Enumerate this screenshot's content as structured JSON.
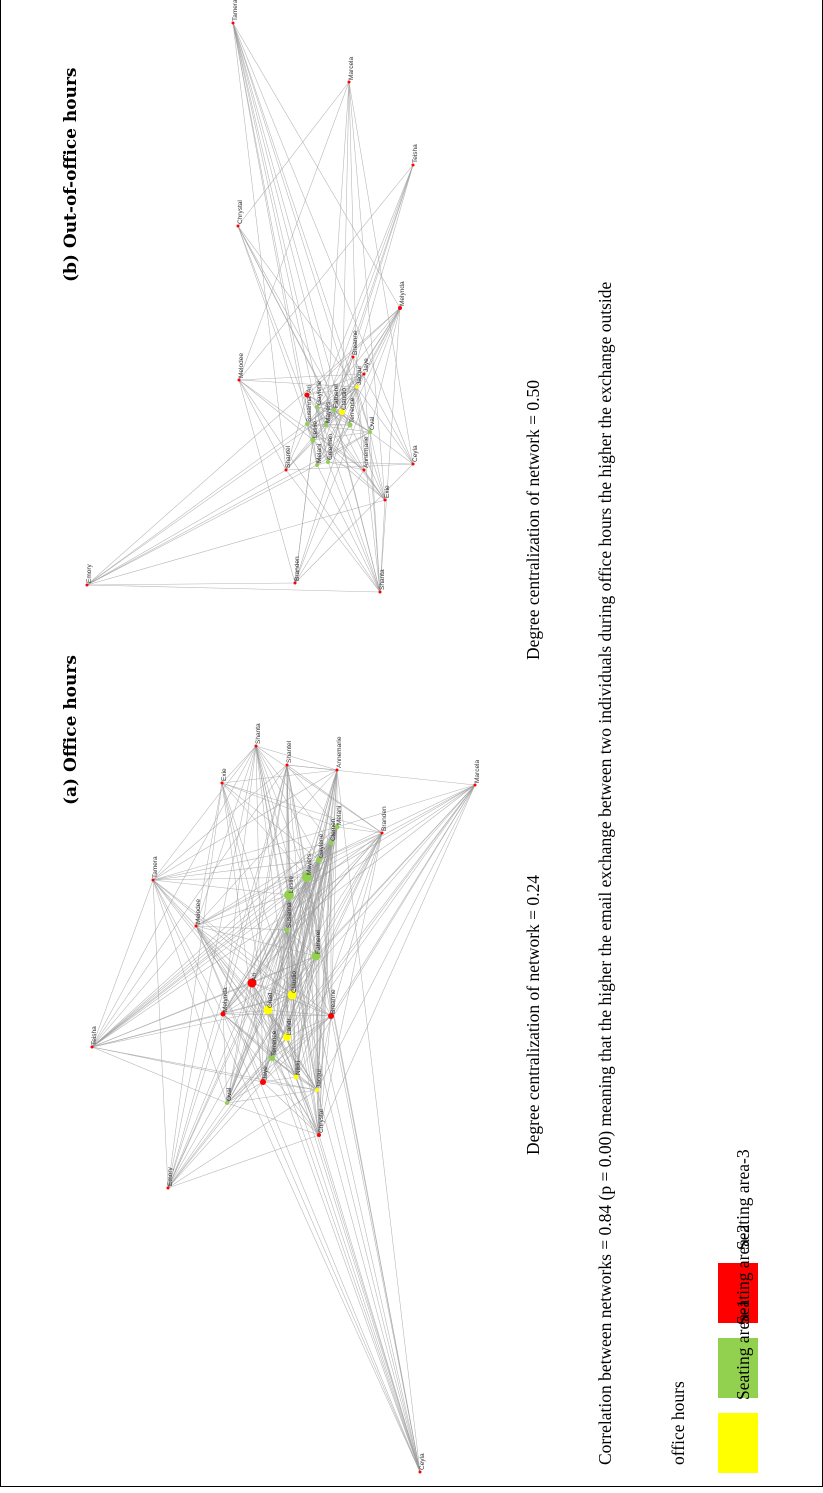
{
  "panels": {
    "a": {
      "title": "(a)  Office hours",
      "centralization": "Degree centralization of network = 0.24"
    },
    "b": {
      "title": "(b)  Out-of-office hours",
      "centralization": "Degree centralization of network = 0.50"
    }
  },
  "correlation": {
    "line1": "Correlation between networks = 0.84 (p = 0.00) meaning that the higher the email exchange between two individuals during office hours the higher the exchange outside",
    "line2": "office hours"
  },
  "legend": [
    {
      "label": "Seating area-1",
      "color": "#ffff00"
    },
    {
      "label": "Seating area-2",
      "color": "#92d050"
    },
    {
      "label": "Seating area-3",
      "color": "#ff0000"
    }
  ],
  "network_a": {
    "nodes": [
      {
        "name": "Teisha"
      },
      {
        "name": "Emory"
      },
      {
        "name": "Ceyla"
      },
      {
        "name": "Marcela"
      },
      {
        "name": "Tamera"
      },
      {
        "name": "Exie"
      },
      {
        "name": "Shanta"
      },
      {
        "name": "Melodee"
      },
      {
        "name": "Shantel"
      },
      {
        "name": "Annemarie"
      },
      {
        "name": "Melani"
      },
      {
        "name": "Branden"
      },
      {
        "name": "Chrystal"
      },
      {
        "name": "Oval"
      },
      {
        "name": "Jaye"
      },
      {
        "name": "Melynda"
      },
      {
        "name": "Ari"
      },
      {
        "name": "Chad"
      },
      {
        "name": "Susanna"
      },
      {
        "name": "Leslie"
      },
      {
        "name": "Mayers"
      },
      {
        "name": "Claudio"
      },
      {
        "name": "Terrence"
      },
      {
        "name": "Jacqui"
      },
      {
        "name": "Breanne"
      },
      {
        "name": "Gaylene"
      },
      {
        "name": "Clemen"
      },
      {
        "name": "Nikki"
      },
      {
        "name": "Fatherel"
      },
      {
        "name": "Landr"
      }
    ]
  },
  "network_b": {
    "nodes": [
      {
        "name": "Emory"
      },
      {
        "name": "Tamera"
      },
      {
        "name": "Marcela"
      },
      {
        "name": "Teisha"
      },
      {
        "name": "Chrystal"
      },
      {
        "name": "Melynda"
      },
      {
        "name": "Melodee"
      },
      {
        "name": "Breanne"
      },
      {
        "name": "Ceyla"
      },
      {
        "name": "Exie"
      },
      {
        "name": "Shanta"
      },
      {
        "name": "Branden"
      },
      {
        "name": "Shantel"
      },
      {
        "name": "Melani"
      },
      {
        "name": "Susanna"
      },
      {
        "name": "Leslie"
      },
      {
        "name": "Ari"
      },
      {
        "name": "Gaylene"
      },
      {
        "name": "Fatherel"
      },
      {
        "name": "Claudio"
      },
      {
        "name": "Jacqui"
      },
      {
        "name": "Jaye"
      },
      {
        "name": "Oval"
      },
      {
        "name": "Terrence"
      },
      {
        "name": "Annemarie"
      },
      {
        "name": "Coleman"
      },
      {
        "name": "Mayers"
      }
    ]
  }
}
